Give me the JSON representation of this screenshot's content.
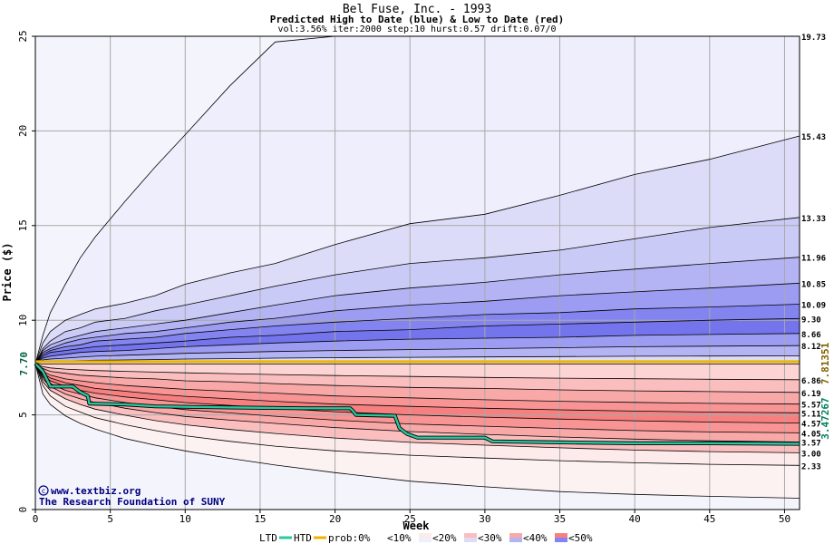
{
  "chart_data": {
    "type": "area",
    "title": "Bel Fuse, Inc. - 1993",
    "subtitle": "Predicted High to Date (blue) &  Low to Date (red)",
    "params": "vol:3.56% iter:2000 step:10 hurst:0.57 drift:0.07/0",
    "xlabel": "Week",
    "ylabel": "Price ($)",
    "xlim": [
      0,
      51
    ],
    "ylim": [
      0,
      25
    ],
    "xticks": [
      0,
      5,
      10,
      15,
      20,
      25,
      30,
      35,
      40,
      45,
      50
    ],
    "yticks": [
      0,
      5,
      10,
      15,
      20,
      25
    ],
    "grid": true,
    "start_price": 7.7,
    "start_label": "7.70",
    "week_axis": [
      0,
      0.5,
      1,
      2,
      3,
      4,
      6,
      8,
      10,
      13,
      16,
      20,
      25,
      30,
      35,
      40,
      45,
      51
    ],
    "high_series": [
      {
        "label": "19.73",
        "values": [
          7.7,
          9.2,
          10.4,
          11.9,
          13.3,
          14.4,
          16.3,
          18.1,
          19.8,
          22.4,
          24.7,
          25,
          25,
          25,
          25,
          25,
          25,
          25
        ]
      },
      {
        "label": "15.43",
        "values": [
          7.7,
          8.8,
          9.4,
          10.0,
          10.3,
          10.6,
          10.9,
          11.3,
          11.9,
          12.5,
          13.0,
          14.0,
          15.1,
          15.6,
          16.6,
          17.7,
          18.5,
          19.73
        ]
      },
      {
        "label": "13.33",
        "values": [
          7.7,
          8.5,
          8.9,
          9.4,
          9.6,
          9.9,
          10.1,
          10.5,
          10.8,
          11.3,
          11.8,
          12.4,
          13.0,
          13.3,
          13.7,
          14.3,
          14.9,
          15.43
        ]
      },
      {
        "label": "11.96",
        "values": [
          7.7,
          8.4,
          8.7,
          9.0,
          9.2,
          9.4,
          9.6,
          9.8,
          10.0,
          10.4,
          10.8,
          11.3,
          11.7,
          12.0,
          12.4,
          12.7,
          13.0,
          13.33
        ]
      },
      {
        "label": "10.85",
        "values": [
          7.7,
          8.3,
          8.5,
          8.8,
          9.0,
          9.1,
          9.3,
          9.4,
          9.6,
          9.9,
          10.1,
          10.5,
          10.8,
          11.0,
          11.3,
          11.5,
          11.7,
          11.96
        ]
      },
      {
        "label": "10.09",
        "values": [
          7.7,
          8.2,
          8.4,
          8.6,
          8.7,
          8.9,
          9.0,
          9.1,
          9.3,
          9.5,
          9.7,
          9.9,
          10.1,
          10.3,
          10.4,
          10.6,
          10.7,
          10.85
        ]
      },
      {
        "label": "9.30",
        "values": [
          7.7,
          8.1,
          8.3,
          8.4,
          8.5,
          8.6,
          8.7,
          8.8,
          8.9,
          9.1,
          9.2,
          9.4,
          9.5,
          9.7,
          9.8,
          9.9,
          10.0,
          10.09
        ]
      },
      {
        "label": "8.66",
        "values": [
          7.7,
          8.0,
          8.1,
          8.2,
          8.3,
          8.35,
          8.4,
          8.5,
          8.6,
          8.7,
          8.8,
          8.9,
          9.0,
          9.05,
          9.1,
          9.2,
          9.25,
          9.3
        ]
      },
      {
        "label": "8.12",
        "values": [
          7.7,
          7.9,
          7.95,
          8.0,
          8.05,
          8.1,
          8.15,
          8.2,
          8.25,
          8.3,
          8.35,
          8.4,
          8.45,
          8.5,
          8.55,
          8.6,
          8.63,
          8.66
        ]
      },
      {
        "label": "",
        "values": [
          7.7,
          7.8,
          7.82,
          7.85,
          7.87,
          7.89,
          7.9,
          7.92,
          7.95,
          7.97,
          8.0,
          8.02,
          8.04,
          8.06,
          8.08,
          8.1,
          8.11,
          8.12
        ]
      }
    ],
    "low_series": [
      {
        "label": "6.86",
        "values": [
          7.7,
          7.55,
          7.48,
          7.42,
          7.38,
          7.34,
          7.3,
          7.26,
          7.22,
          7.18,
          7.13,
          7.08,
          7.03,
          6.98,
          6.94,
          6.91,
          6.88,
          6.86
        ]
      },
      {
        "label": "6.19",
        "values": [
          7.7,
          7.45,
          7.3,
          7.2,
          7.1,
          7.05,
          6.95,
          6.9,
          6.8,
          6.75,
          6.65,
          6.55,
          6.45,
          6.4,
          6.32,
          6.27,
          6.23,
          6.19
        ]
      },
      {
        "label": "5.57",
        "values": [
          7.7,
          7.3,
          7.1,
          6.9,
          6.8,
          6.7,
          6.55,
          6.45,
          6.35,
          6.25,
          6.15,
          6.0,
          5.9,
          5.8,
          5.72,
          5.66,
          5.61,
          5.57
        ]
      },
      {
        "label": "5.11",
        "values": [
          7.7,
          7.2,
          6.95,
          6.7,
          6.55,
          6.4,
          6.25,
          6.1,
          5.98,
          5.85,
          5.72,
          5.57,
          5.45,
          5.35,
          5.27,
          5.2,
          5.15,
          5.11
        ]
      },
      {
        "label": "4.57",
        "values": [
          7.7,
          7.1,
          6.8,
          6.5,
          6.3,
          6.15,
          5.95,
          5.8,
          5.65,
          5.5,
          5.35,
          5.17,
          5.0,
          4.88,
          4.78,
          4.69,
          4.62,
          4.57
        ]
      },
      {
        "label": "4.05",
        "values": [
          7.7,
          7.0,
          6.65,
          6.3,
          6.1,
          5.9,
          5.65,
          5.45,
          5.28,
          5.1,
          4.93,
          4.72,
          4.52,
          4.4,
          4.28,
          4.17,
          4.1,
          4.05
        ]
      },
      {
        "label": "3.57",
        "values": [
          7.7,
          6.9,
          6.5,
          6.1,
          5.85,
          5.65,
          5.35,
          5.12,
          4.92,
          4.72,
          4.55,
          4.33,
          4.12,
          3.97,
          3.83,
          3.72,
          3.63,
          3.57
        ]
      },
      {
        "label": "3.00",
        "values": [
          7.7,
          6.75,
          6.3,
          5.85,
          5.55,
          5.3,
          4.98,
          4.7,
          4.48,
          4.23,
          4.02,
          3.78,
          3.55,
          3.4,
          3.26,
          3.14,
          3.06,
          3.0
        ]
      },
      {
        "label": "2.33",
        "values": [
          7.7,
          6.55,
          6.0,
          5.45,
          5.15,
          4.85,
          4.48,
          4.17,
          3.9,
          3.6,
          3.35,
          3.1,
          2.87,
          2.72,
          2.58,
          2.47,
          2.39,
          2.33
        ]
      },
      {
        "label": "",
        "values": [
          7.7,
          6.1,
          5.55,
          4.95,
          4.55,
          4.25,
          3.75,
          3.4,
          3.1,
          2.7,
          2.35,
          1.95,
          1.5,
          1.2,
          0.95,
          0.8,
          0.7,
          0.6
        ]
      }
    ],
    "ltd_label": "3.47267",
    "htd_label": "7.81351",
    "ltd_path": [
      [
        0,
        7.7
      ],
      [
        0.5,
        7.3
      ],
      [
        1,
        6.5
      ],
      [
        2.5,
        6.5
      ],
      [
        3,
        6.2
      ],
      [
        3.5,
        6.0
      ],
      [
        3.6,
        5.6
      ],
      [
        6,
        5.55
      ],
      [
        8,
        5.45
      ],
      [
        12,
        5.4
      ],
      [
        18,
        5.35
      ],
      [
        21,
        5.35
      ],
      [
        21.2,
        5.2
      ],
      [
        21.4,
        5.0
      ],
      [
        24,
        4.95
      ],
      [
        24.3,
        4.3
      ],
      [
        24.8,
        4.0
      ],
      [
        25.5,
        3.8
      ],
      [
        30,
        3.8
      ],
      [
        30.5,
        3.6
      ],
      [
        35,
        3.55
      ],
      [
        40,
        3.5
      ],
      [
        45,
        3.5
      ],
      [
        51,
        3.47
      ]
    ],
    "htd_value": 7.81351
  },
  "legend": {
    "ltd": "LTD",
    "htd": "HTD",
    "prob": "prob:0%",
    "items": [
      "<10%",
      "<20%",
      "<30%",
      "<40%",
      "<50%"
    ]
  },
  "watermark": {
    "line1": "www.textbiz.org",
    "line2": "The Research Foundation of SUNY"
  },
  "colors": {
    "blue_bands": [
      "#eeeefc",
      "#dcdcf8",
      "#cacaf6",
      "#b4b4f4",
      "#9c9cf2",
      "#8484f0",
      "#7474ec",
      "#9c9cf2",
      "#b4b4f4",
      "#dcdcf8"
    ],
    "red_bands": [
      "#fcd4d4",
      "#fbbebe",
      "#f9a8a8",
      "#f89494",
      "#f68080",
      "#f89494",
      "#f9a8a8",
      "#fbbebe",
      "#fdeaea",
      "#fdf2f2"
    ],
    "htd": "#f0b400",
    "ltd": "#28c8a0",
    "ltd_label": "#008060",
    "htd_label": "#806000",
    "plot_bg": "#f4f4fc",
    "grid": "#a8a8a8"
  }
}
